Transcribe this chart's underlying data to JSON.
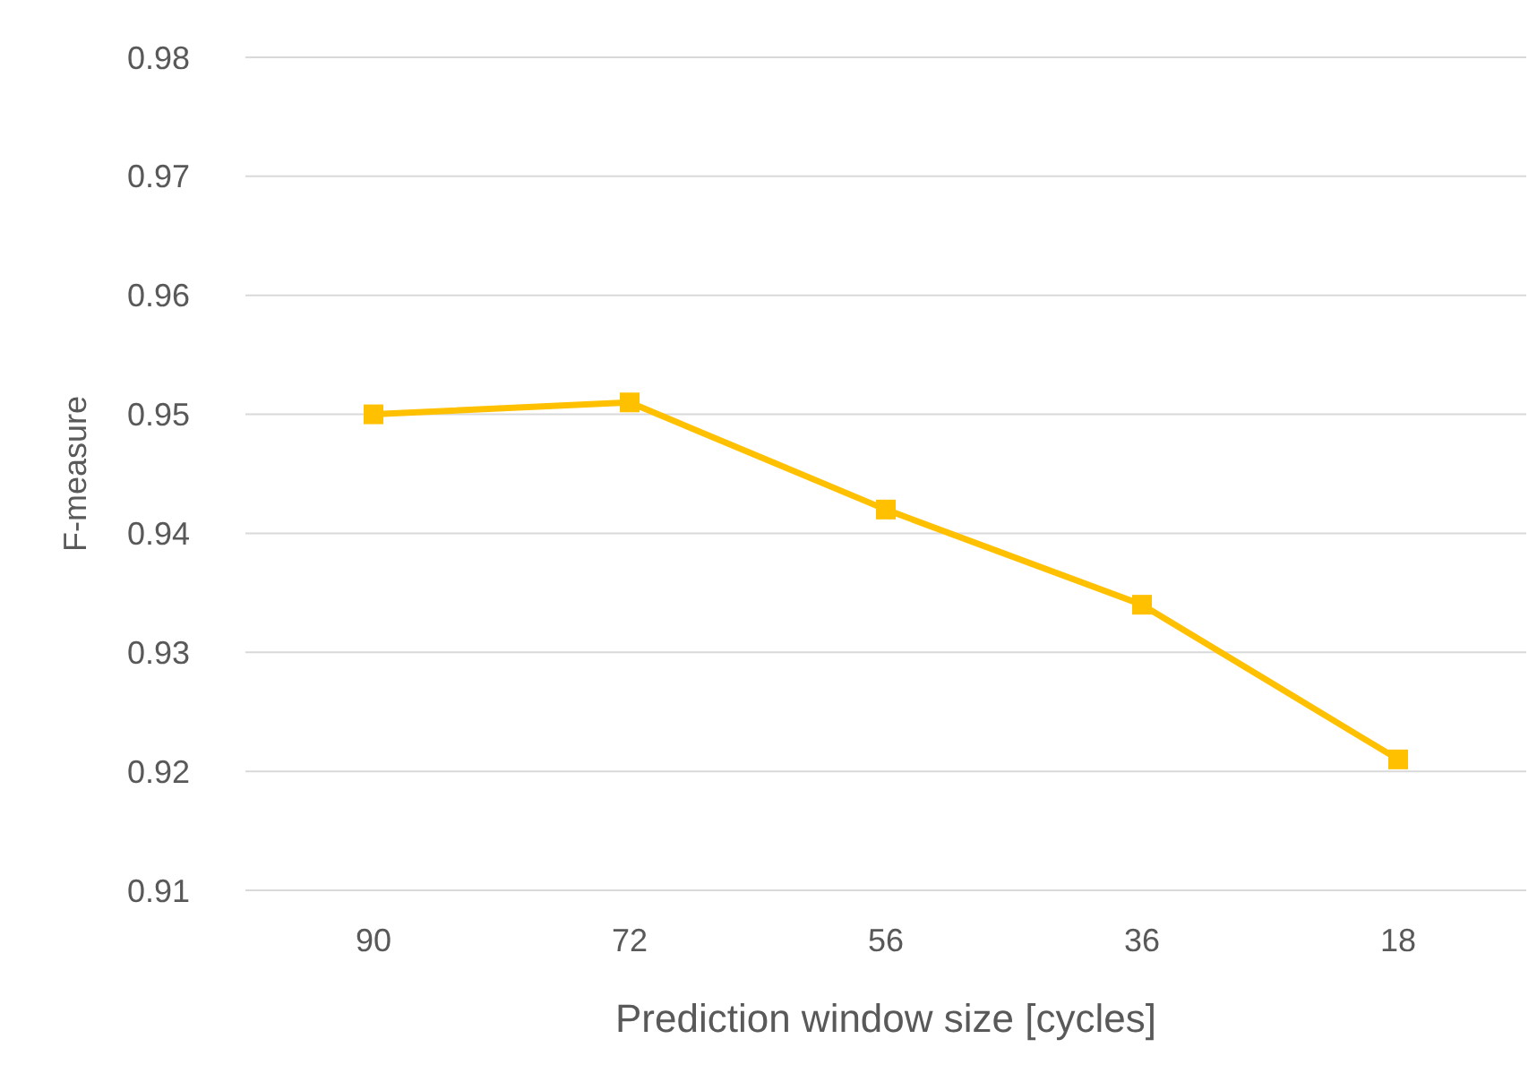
{
  "chart_data": {
    "type": "line",
    "xlabel": "Prediction window size [cycles]",
    "ylabel": "F-measure",
    "categories": [
      "90",
      "72",
      "56",
      "36",
      "18"
    ],
    "series": [
      {
        "color": "#ffc000",
        "values": [
          0.95,
          0.951,
          0.942,
          0.934,
          0.921
        ]
      }
    ],
    "ylim": [
      0.91,
      0.98
    ],
    "yticks": [
      0.91,
      0.92,
      0.93,
      0.94,
      0.95,
      0.96,
      0.97,
      0.98
    ],
    "grid": "y",
    "marker": "square",
    "line_style": "solid"
  }
}
